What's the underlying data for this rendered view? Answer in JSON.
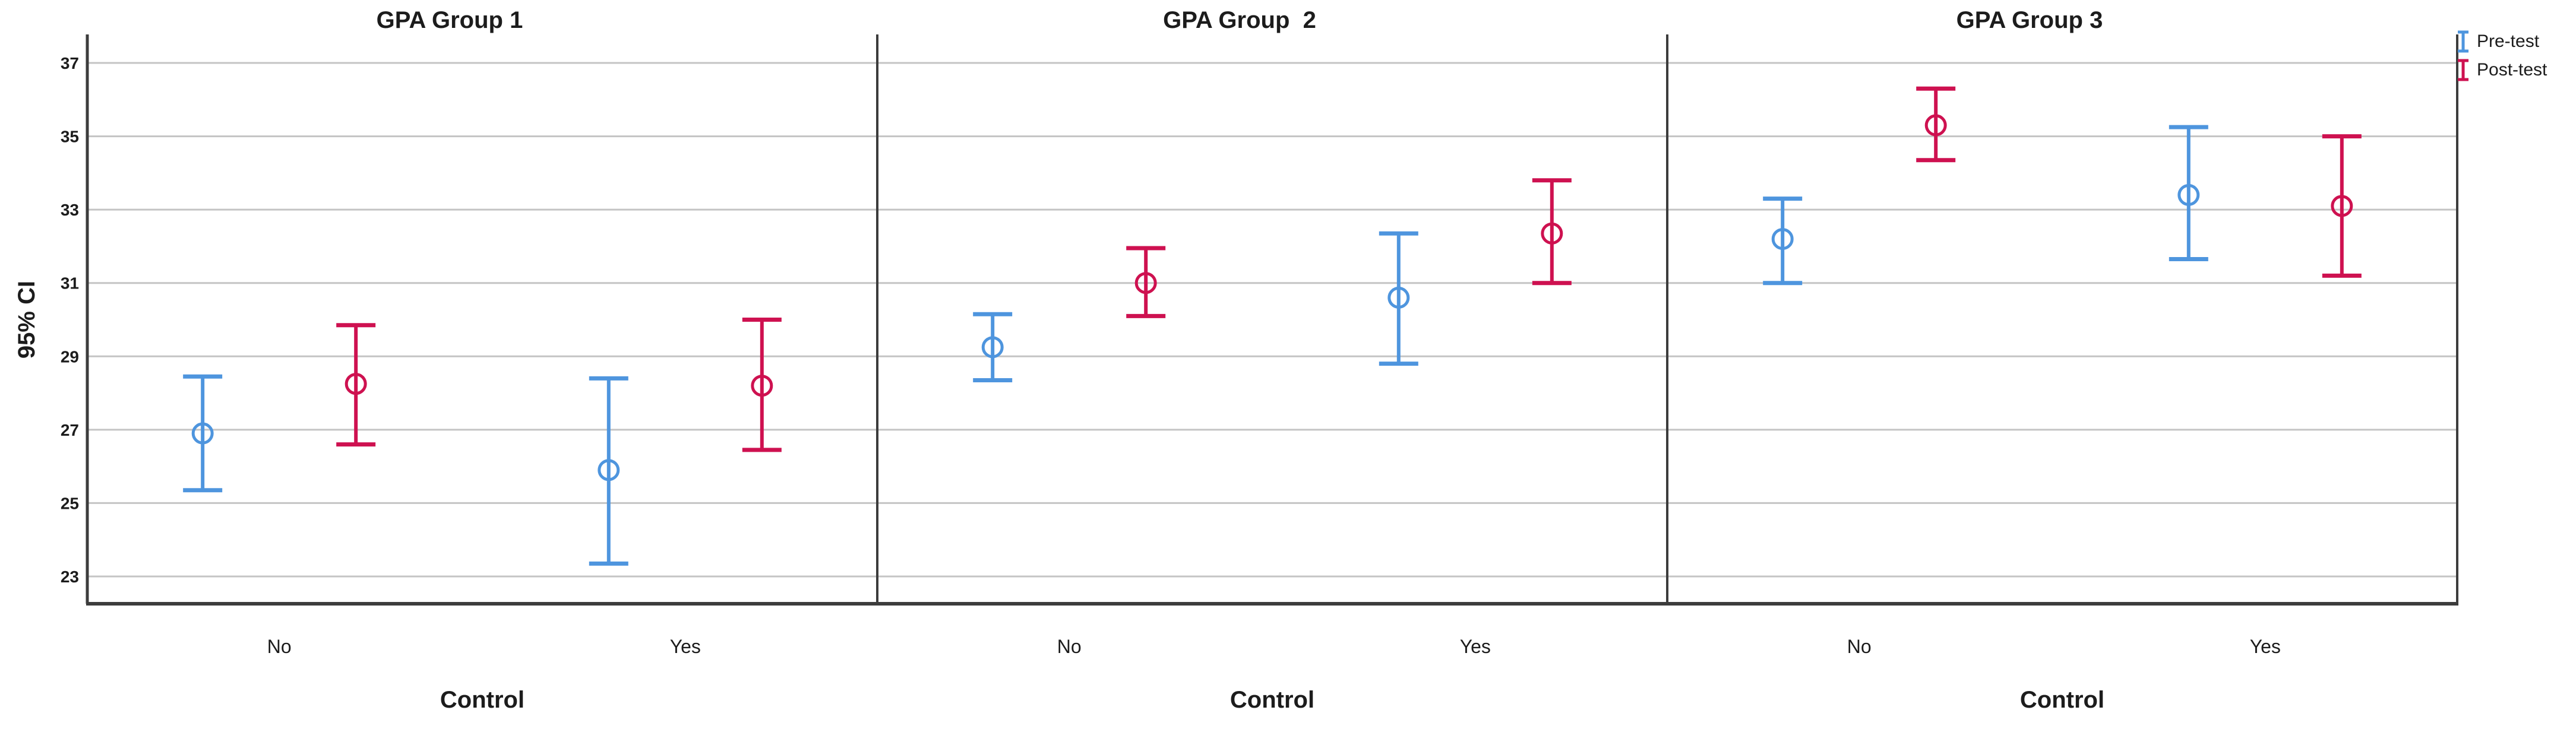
{
  "chart_data": {
    "type": "errorbar",
    "title": "",
    "ylabel": "95% CI",
    "xlabel": "Control",
    "yticks": [
      23,
      25,
      27,
      29,
      31,
      33,
      35,
      37
    ],
    "ylim": [
      22.3,
      37.8
    ],
    "grid": true,
    "legend_position": "top-right",
    "categories": [
      "No",
      "Yes"
    ],
    "series_meta": [
      {
        "name": "Pre-test",
        "color": "#4E95DE"
      },
      {
        "name": "Post-test",
        "color": "#CE1150"
      }
    ],
    "panels": [
      {
        "title": "GPA Group 1",
        "points": [
          {
            "category": "No",
            "series": "Pre-test",
            "mean": 26.9,
            "ci_low": 25.35,
            "ci_high": 28.45
          },
          {
            "category": "No",
            "series": "Post-test",
            "mean": 28.25,
            "ci_low": 26.6,
            "ci_high": 29.85
          },
          {
            "category": "Yes",
            "series": "Pre-test",
            "mean": 25.9,
            "ci_low": 23.35,
            "ci_high": 28.4
          },
          {
            "category": "Yes",
            "series": "Post-test",
            "mean": 28.2,
            "ci_low": 26.45,
            "ci_high": 30.0
          }
        ]
      },
      {
        "title": "GPA Group  2",
        "points": [
          {
            "category": "No",
            "series": "Pre-test",
            "mean": 29.25,
            "ci_low": 28.35,
            "ci_high": 30.15
          },
          {
            "category": "No",
            "series": "Post-test",
            "mean": 31.0,
            "ci_low": 30.1,
            "ci_high": 31.95
          },
          {
            "category": "Yes",
            "series": "Pre-test",
            "mean": 30.6,
            "ci_low": 28.8,
            "ci_high": 32.35
          },
          {
            "category": "Yes",
            "series": "Post-test",
            "mean": 32.35,
            "ci_low": 31.0,
            "ci_high": 33.8
          }
        ]
      },
      {
        "title": "GPA Group 3",
        "points": [
          {
            "category": "No",
            "series": "Pre-test",
            "mean": 32.2,
            "ci_low": 31.0,
            "ci_high": 33.3
          },
          {
            "category": "No",
            "series": "Post-test",
            "mean": 35.3,
            "ci_low": 34.35,
            "ci_high": 36.3
          },
          {
            "category": "Yes",
            "series": "Pre-test",
            "mean": 33.4,
            "ci_low": 31.65,
            "ci_high": 35.25
          },
          {
            "category": "Yes",
            "series": "Post-test",
            "mean": 33.1,
            "ci_low": 31.2,
            "ci_high": 35.0
          }
        ]
      }
    ],
    "colors": {
      "gridline": "#c4c4c4",
      "spine": "#3c3c3c",
      "text": "#1c1c1c",
      "background": "#ffffff"
    },
    "legend": {
      "items": [
        {
          "label": "Pre-test"
        },
        {
          "label": "Post-test"
        }
      ]
    }
  }
}
